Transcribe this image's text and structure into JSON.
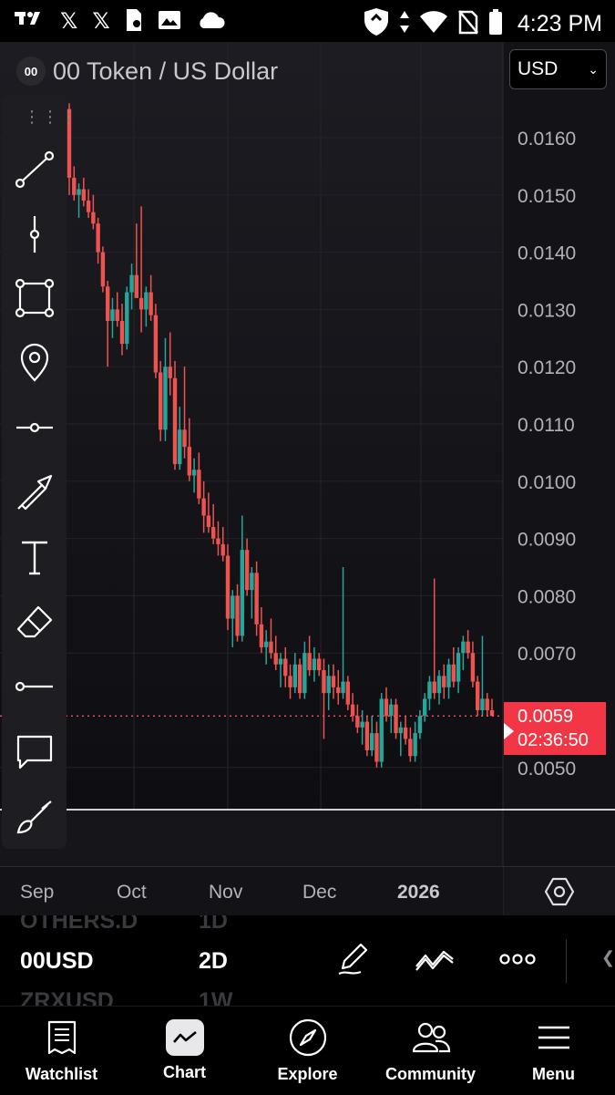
{
  "status_bar": {
    "time": "4:23 PM",
    "left_icons": [
      "tradingview-logo",
      "x-icon",
      "x-icon",
      "document-icon",
      "image-icon",
      "cloud-icon"
    ],
    "right_icons": [
      "shield-icon",
      "data-arrows-icon",
      "wifi-icon",
      "no-sim-icon",
      "battery-icon"
    ]
  },
  "header": {
    "logo_text": "00",
    "symbol_title": "00 Token / US Dollar",
    "currency": "USD"
  },
  "price_badge": {
    "price": "0.0059",
    "countdown": "02:36:50"
  },
  "colors": {
    "up": "#26a69a",
    "down": "#ef5350",
    "badge": "#f23645",
    "price_line": "#f7525f"
  },
  "toolbar": {
    "tools": [
      "trend-line-icon",
      "vertical-line-icon",
      "rectangle-icon",
      "pin-icon",
      "horizontal-ray-icon",
      "arrow-icon",
      "text-icon",
      "eraser-icon",
      "horizontal-line-icon",
      "comment-icon",
      "brush-icon"
    ]
  },
  "chart_data": {
    "type": "candlestick",
    "y_ticks": [
      "0.0160",
      "0.0150",
      "0.0140",
      "0.0130",
      "0.0120",
      "0.0110",
      "0.0100",
      "0.0090",
      "0.0080",
      "0.0070",
      "0.0050"
    ],
    "ylim": [
      0.005,
      0.016
    ],
    "x_ticks": [
      "Sep",
      "Oct",
      "Nov",
      "Dec",
      "2026"
    ],
    "last_price": 0.0059,
    "candles": [
      [
        0.0165,
        0.0166,
        0.015,
        0.0153
      ],
      [
        0.0153,
        0.0155,
        0.0149,
        0.015
      ],
      [
        0.015,
        0.0152,
        0.0146,
        0.0151
      ],
      [
        0.0151,
        0.0153,
        0.0148,
        0.0149
      ],
      [
        0.0149,
        0.0151,
        0.0146,
        0.0147
      ],
      [
        0.0147,
        0.015,
        0.0144,
        0.0145
      ],
      [
        0.0145,
        0.0146,
        0.0138,
        0.014
      ],
      [
        0.014,
        0.0141,
        0.0133,
        0.0134
      ],
      [
        0.0134,
        0.0135,
        0.012,
        0.0128
      ],
      [
        0.0128,
        0.0132,
        0.0125,
        0.013
      ],
      [
        0.013,
        0.0133,
        0.0127,
        0.0128
      ],
      [
        0.0128,
        0.0131,
        0.0122,
        0.0124
      ],
      [
        0.0124,
        0.0134,
        0.0123,
        0.0133
      ],
      [
        0.0133,
        0.0138,
        0.013,
        0.0136
      ],
      [
        0.0136,
        0.0145,
        0.0132,
        0.0132
      ],
      [
        0.0132,
        0.0148,
        0.0126,
        0.013
      ],
      [
        0.013,
        0.0134,
        0.0127,
        0.0133
      ],
      [
        0.0133,
        0.0136,
        0.0128,
        0.0129
      ],
      [
        0.0129,
        0.0131,
        0.0118,
        0.0119
      ],
      [
        0.0119,
        0.0121,
        0.0107,
        0.0109
      ],
      [
        0.0109,
        0.0125,
        0.0107,
        0.012
      ],
      [
        0.012,
        0.0126,
        0.0115,
        0.0118
      ],
      [
        0.0118,
        0.0121,
        0.0102,
        0.0103
      ],
      [
        0.0103,
        0.0113,
        0.0102,
        0.0109
      ],
      [
        0.0109,
        0.012,
        0.0104,
        0.0106
      ],
      [
        0.0106,
        0.0111,
        0.01,
        0.0101
      ],
      [
        0.0101,
        0.0104,
        0.0098,
        0.0102
      ],
      [
        0.0102,
        0.0105,
        0.0096,
        0.0097
      ],
      [
        0.0097,
        0.01,
        0.0091,
        0.0094
      ],
      [
        0.0094,
        0.0098,
        0.0091,
        0.0092
      ],
      [
        0.0092,
        0.0096,
        0.0089,
        0.009
      ],
      [
        0.009,
        0.0093,
        0.0087,
        0.0089
      ],
      [
        0.0089,
        0.0092,
        0.0086,
        0.0087
      ],
      [
        0.0087,
        0.0089,
        0.0074,
        0.0076
      ],
      [
        0.0076,
        0.0081,
        0.0071,
        0.008
      ],
      [
        0.008,
        0.0082,
        0.0072,
        0.0073
      ],
      [
        0.0073,
        0.0094,
        0.0072,
        0.0088
      ],
      [
        0.0088,
        0.009,
        0.008,
        0.0081
      ],
      [
        0.0081,
        0.0085,
        0.0076,
        0.0084
      ],
      [
        0.0084,
        0.0086,
        0.0073,
        0.0075
      ],
      [
        0.0075,
        0.0078,
        0.007,
        0.0071
      ],
      [
        0.0071,
        0.0074,
        0.0068,
        0.0072
      ],
      [
        0.0072,
        0.0076,
        0.0069,
        0.007
      ],
      [
        0.007,
        0.0073,
        0.0067,
        0.0068
      ],
      [
        0.0068,
        0.007,
        0.0064,
        0.0069
      ],
      [
        0.0069,
        0.0071,
        0.0064,
        0.0066
      ],
      [
        0.0066,
        0.0068,
        0.0062,
        0.0064
      ],
      [
        0.0064,
        0.007,
        0.0063,
        0.0068
      ],
      [
        0.0068,
        0.0069,
        0.0062,
        0.0063
      ],
      [
        0.0063,
        0.0072,
        0.0062,
        0.007
      ],
      [
        0.007,
        0.0073,
        0.0066,
        0.0067
      ],
      [
        0.0067,
        0.0071,
        0.0065,
        0.0069
      ],
      [
        0.0069,
        0.007,
        0.0066,
        0.0067
      ],
      [
        0.0067,
        0.0069,
        0.0055,
        0.0063
      ],
      [
        0.0063,
        0.0068,
        0.006,
        0.0066
      ],
      [
        0.0066,
        0.0068,
        0.0062,
        0.0064
      ],
      [
        0.0064,
        0.0067,
        0.0061,
        0.0063
      ],
      [
        0.0063,
        0.0085,
        0.0062,
        0.0065
      ],
      [
        0.0065,
        0.0066,
        0.006,
        0.0061
      ],
      [
        0.0061,
        0.0063,
        0.0058,
        0.0059
      ],
      [
        0.0059,
        0.0061,
        0.0056,
        0.0057
      ],
      [
        0.0057,
        0.006,
        0.0054,
        0.0058
      ],
      [
        0.0058,
        0.0059,
        0.0052,
        0.0053
      ],
      [
        0.0053,
        0.0059,
        0.0052,
        0.0056
      ],
      [
        0.0056,
        0.0058,
        0.005,
        0.0051
      ],
      [
        0.0051,
        0.0063,
        0.005,
        0.0062
      ],
      [
        0.0062,
        0.0064,
        0.0058,
        0.0059
      ],
      [
        0.0059,
        0.0062,
        0.0056,
        0.0061
      ],
      [
        0.0061,
        0.0062,
        0.0055,
        0.0056
      ],
      [
        0.0056,
        0.0058,
        0.0052,
        0.0057
      ],
      [
        0.0057,
        0.0059,
        0.0054,
        0.0055
      ],
      [
        0.0055,
        0.0057,
        0.0051,
        0.0052
      ],
      [
        0.0052,
        0.0058,
        0.0051,
        0.0056
      ],
      [
        0.0056,
        0.006,
        0.0055,
        0.0059
      ],
      [
        0.0059,
        0.0063,
        0.0058,
        0.0062
      ],
      [
        0.0062,
        0.0066,
        0.006,
        0.0065
      ],
      [
        0.0065,
        0.0083,
        0.0062,
        0.0063
      ],
      [
        0.0063,
        0.0067,
        0.0061,
        0.0066
      ],
      [
        0.0066,
        0.0068,
        0.0062,
        0.0064
      ],
      [
        0.0064,
        0.0069,
        0.0062,
        0.0068
      ],
      [
        0.0068,
        0.0071,
        0.0064,
        0.0065
      ],
      [
        0.0065,
        0.0071,
        0.0063,
        0.007
      ],
      [
        0.007,
        0.0073,
        0.0067,
        0.0072
      ],
      [
        0.0072,
        0.0074,
        0.0069,
        0.007
      ],
      [
        0.007,
        0.0072,
        0.0064,
        0.0065
      ],
      [
        0.0065,
        0.0066,
        0.0059,
        0.006
      ],
      [
        0.006,
        0.0073,
        0.0059,
        0.0062
      ],
      [
        0.0062,
        0.0063,
        0.0059,
        0.006
      ],
      [
        0.006,
        0.0062,
        0.0059,
        0.0059
      ]
    ]
  },
  "watchlist_strip": {
    "prev_symbol": "OTHERS.D",
    "prev_tf": "1D",
    "current_symbol": "00USD",
    "current_tf": "2D",
    "next_symbol": "ZRXUSD",
    "next_tf": "1W"
  },
  "nav": {
    "watchlist": "Watchlist",
    "chart": "Chart",
    "explore": "Explore",
    "community": "Community",
    "menu": "Menu"
  }
}
